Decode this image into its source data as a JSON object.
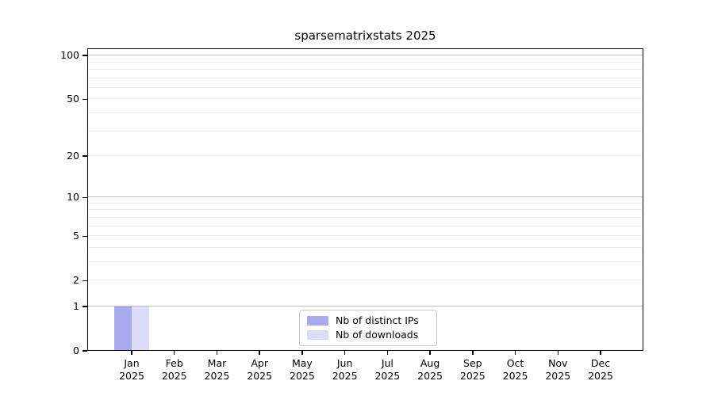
{
  "figure": {
    "title": "sparsematrixstats 2025"
  },
  "colors": {
    "distinct_ips_bar": "#a9a9f0",
    "downloads_bar": "#dcdcf8",
    "grid_major": "#bdbdbd",
    "grid_minor": "#ebebeb",
    "spine": "#000000",
    "legend_border": "#c9c9c9",
    "background": "#ffffff"
  },
  "legend": {
    "entries": [
      {
        "label": "Nb of distinct IPs",
        "color": "#a9a9f0"
      },
      {
        "label": "Nb of downloads",
        "color": "#dcdcf8"
      }
    ]
  },
  "chart_data": {
    "type": "bar",
    "title": "sparsematrixstats 2025",
    "categories": [
      "Jan",
      "Feb",
      "Mar",
      "Apr",
      "May",
      "Jun",
      "Jul",
      "Aug",
      "Sep",
      "Oct",
      "Nov",
      "Dec"
    ],
    "year_label": "2025",
    "series": [
      {
        "name": "Nb of distinct IPs",
        "color": "#a9a9f0",
        "values": [
          1,
          0,
          0,
          0,
          0,
          0,
          0,
          0,
          0,
          0,
          0,
          0
        ]
      },
      {
        "name": "Nb of downloads",
        "color": "#dcdcf8",
        "values": [
          1,
          0,
          0,
          0,
          0,
          0,
          0,
          0,
          0,
          0,
          0,
          0
        ]
      }
    ],
    "xlabel": "",
    "ylabel": "",
    "y_axis": {
      "scale": "log(value+1)",
      "ylim": [
        0,
        112
      ],
      "ticks": [
        0,
        1,
        2,
        5,
        10,
        20,
        50,
        100
      ],
      "strong_gridlines": [
        1,
        10,
        100
      ],
      "light_gridlines": [
        2,
        5,
        20,
        50
      ],
      "minor_gridlines": [
        3,
        4,
        6,
        7,
        8,
        9,
        30,
        40,
        60,
        70,
        80,
        90
      ]
    },
    "grid": true,
    "legend_position": "lower center"
  }
}
